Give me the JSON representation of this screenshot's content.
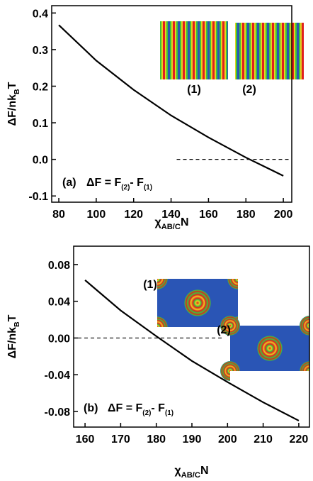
{
  "chart_data": [
    {
      "type": "line",
      "panel": "(a)",
      "x": [
        80,
        100,
        120,
        140,
        160,
        180,
        200
      ],
      "values": [
        0.367,
        0.27,
        0.19,
        0.12,
        0.06,
        0.005,
        -0.045
      ],
      "color": "#000000",
      "xlim": [
        76.2,
        204.5
      ],
      "xticks": [
        80,
        100,
        120,
        140,
        160,
        180,
        200
      ],
      "ylim": [
        -0.117,
        0.42
      ],
      "yticks": [
        -0.1,
        {
          "value": 0,
          "label": "0.0"
        },
        0.1,
        0.2,
        0.3,
        0.4
      ],
      "reference": {
        "y": 0,
        "x": [
          143,
          203
        ]
      },
      "annotation": {
        "lhs": "ΔF = F",
        "sub1": "(2)",
        "mid": "- F",
        "sub2": "(1)"
      },
      "ylabel": {
        "main": "ΔF/nk",
        "sub": "B",
        "end": "T"
      },
      "xlabel": {
        "main": "χ",
        "sub": "AB/C",
        "end": "N"
      },
      "inset_labels": [
        "(1)",
        "(2)"
      ]
    },
    {
      "type": "line",
      "panel": "(b)",
      "x": [
        160,
        170,
        180,
        190,
        200,
        210,
        220
      ],
      "values": [
        0.063,
        0.03,
        0.002,
        -0.025,
        -0.048,
        -0.07,
        -0.09
      ],
      "color": "#000000",
      "xlim": [
        156.8,
        223
      ],
      "xticks": [
        160,
        170,
        180,
        190,
        200,
        210,
        220
      ],
      "ylim": [
        -0.097,
        0.1
      ],
      "yticks": [
        -0.08,
        -0.04,
        {
          "value": 0,
          "label": "0.00"
        },
        0.04,
        0.08
      ],
      "reference": {
        "y": 0,
        "x": [
          158,
          199
        ]
      },
      "annotation": {
        "lhs": "ΔF = F",
        "sub1": "(2)",
        "mid": "- F",
        "sub2": "(1)"
      },
      "ylabel": {
        "main": "ΔF/nk",
        "sub": "B",
        "end": "T"
      },
      "xlabel": {
        "main": "χ",
        "sub": "AB/C",
        "end": "N"
      },
      "inset_labels": [
        "(1)",
        "(2)"
      ]
    }
  ]
}
